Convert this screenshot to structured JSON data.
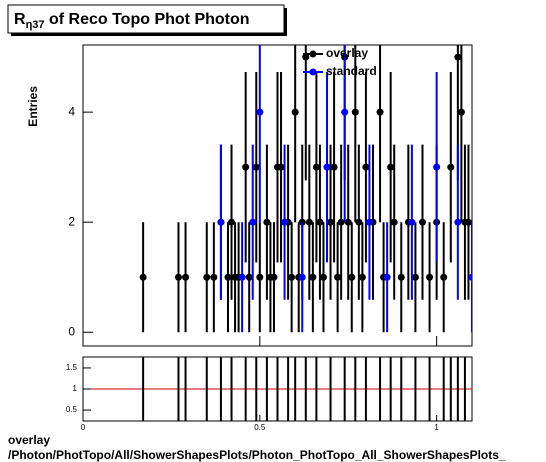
{
  "chart_data": {
    "type": "errorbar",
    "title": "R",
    "title_sub": "η37",
    "title_rest": " of Reco Topo Phot Photon",
    "ylabel": "Entries",
    "xlim": [
      0,
      1.1
    ],
    "ylim": [
      -0.25,
      5.22
    ],
    "yticks": [
      0,
      2,
      4
    ],
    "xticks": [
      0,
      0.5,
      1
    ],
    "legend": "top",
    "series": [
      {
        "name": "overlay",
        "color": "#000000",
        "x": [
          0.17,
          0.27,
          0.29,
          0.35,
          0.37,
          0.39,
          0.41,
          0.42,
          0.43,
          0.44,
          0.46,
          0.47,
          0.49,
          0.5,
          0.52,
          0.53,
          0.54,
          0.55,
          0.56,
          0.58,
          0.59,
          0.6,
          0.61,
          0.62,
          0.63,
          0.64,
          0.65,
          0.66,
          0.67,
          0.68,
          0.7,
          0.71,
          0.72,
          0.73,
          0.74,
          0.75,
          0.76,
          0.77,
          0.78,
          0.79,
          0.8,
          0.82,
          0.84,
          0.85,
          0.87,
          0.88,
          0.9,
          0.92,
          0.94,
          0.96,
          0.98,
          1.0,
          1.02,
          1.04,
          1.06,
          1.07,
          1.08,
          1.09
        ],
        "values": [
          1,
          1,
          1,
          1,
          1,
          2,
          1,
          2,
          1,
          1,
          3,
          1,
          3,
          1,
          2,
          1,
          1,
          3,
          3,
          2,
          1,
          4,
          1,
          2,
          5,
          2,
          1,
          3,
          2,
          1,
          2,
          3,
          1,
          2,
          5,
          2,
          1,
          4,
          2,
          1,
          3,
          2,
          4,
          1,
          3,
          2,
          1,
          2,
          1,
          2,
          1,
          2,
          1,
          3,
          5,
          4,
          2,
          2
        ],
        "errors": [
          1,
          1,
          1,
          1,
          1,
          1.41,
          1,
          1.41,
          1,
          1,
          1.73,
          1,
          1.73,
          1,
          1.41,
          1,
          1,
          1.73,
          1.73,
          1.41,
          1,
          2,
          1,
          1.41,
          2.24,
          1.41,
          1,
          1.73,
          1.41,
          1,
          1.41,
          1.73,
          1,
          1.41,
          2.24,
          1.41,
          1,
          2,
          1.41,
          1,
          1.73,
          1.41,
          2,
          1,
          1.73,
          1.41,
          1,
          1.41,
          1,
          1.41,
          1,
          1.41,
          1,
          1.73,
          2.24,
          2,
          1.41,
          1.41
        ]
      },
      {
        "name": "standard",
        "color": "#0000ff",
        "x": [
          0.39,
          0.45,
          0.48,
          0.5,
          0.57,
          0.62,
          0.69,
          0.74,
          0.81,
          0.86,
          0.93,
          1.0,
          1.06,
          1.1
        ],
        "values": [
          2,
          1,
          2,
          4,
          2,
          1,
          3,
          4,
          2,
          1,
          2,
          3,
          2,
          1
        ],
        "errors": [
          1.41,
          1,
          1.41,
          2,
          1.41,
          1,
          1.73,
          2,
          1.41,
          1,
          1.41,
          1.73,
          1.41,
          1
        ]
      }
    ],
    "ratio": {
      "ylim": [
        0.24,
        1.76
      ],
      "yticks": [
        0.5,
        1,
        1.5
      ],
      "reference": 1,
      "color": "#cc0000",
      "x": [
        0.17,
        0.27,
        0.29,
        0.35,
        0.39,
        0.42,
        0.46,
        0.49,
        0.52,
        0.55,
        0.58,
        0.6,
        0.63,
        0.66,
        0.7,
        0.74,
        0.77,
        0.8,
        0.84,
        0.87,
        0.9,
        0.94,
        0.98,
        1.02,
        1.04,
        1.06,
        1.08
      ],
      "values": [
        1,
        1,
        1,
        1,
        1,
        1,
        1,
        1,
        1,
        1,
        1,
        1,
        1,
        1,
        1,
        1,
        1,
        1,
        1,
        1,
        1,
        1,
        1,
        1,
        1,
        1,
        1
      ],
      "errors": [
        1,
        1,
        1,
        1,
        1,
        1,
        1,
        1,
        1,
        1,
        1,
        1,
        1,
        1,
        1,
        1,
        1,
        1,
        1,
        1,
        1,
        1,
        1,
        1,
        1,
        1,
        1
      ]
    },
    "footer_1": "overlay",
    "footer_2": "/Photon/PhotTopo/All/ShowerShapesPlots/Photon_PhotTopo_All_ShowerShapesPlots_"
  }
}
